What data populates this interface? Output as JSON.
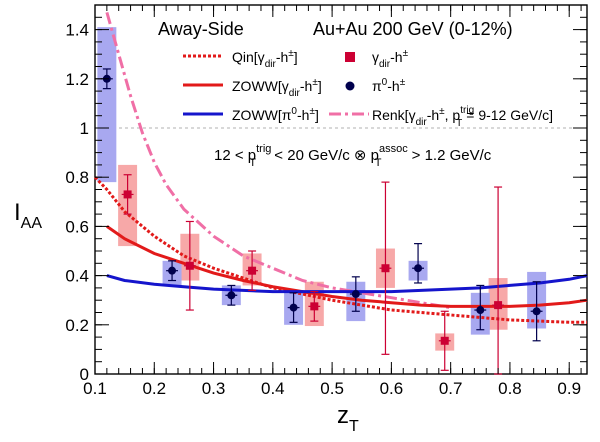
{
  "chart_data": {
    "type": "scatter",
    "title": "",
    "header_left": "Away-Side",
    "header_right": "Au+Au 200 GeV (0-12%)",
    "ylabel": {
      "main": "I",
      "sub": "AA"
    },
    "xlabel": {
      "main": "z",
      "sub": "T"
    },
    "xlim": [
      0.1,
      0.93
    ],
    "ylim": [
      0,
      1.5
    ],
    "x_ticks": [
      {
        "v": 0.1,
        "label": "0.1"
      },
      {
        "v": 0.2,
        "label": "0.2"
      },
      {
        "v": 0.3,
        "label": "0.3"
      },
      {
        "v": 0.4,
        "label": "0.4"
      },
      {
        "v": 0.5,
        "label": "0.5"
      },
      {
        "v": 0.6,
        "label": "0.6"
      },
      {
        "v": 0.7,
        "label": "0.7"
      },
      {
        "v": 0.8,
        "label": "0.8"
      },
      {
        "v": 0.9,
        "label": "0.9"
      }
    ],
    "y_ticks": [
      {
        "v": 0,
        "label": "0"
      },
      {
        "v": 0.2,
        "label": "0.2"
      },
      {
        "v": 0.4,
        "label": "0.4"
      },
      {
        "v": 0.6,
        "label": "0.6"
      },
      {
        "v": 0.8,
        "label": "0.8"
      },
      {
        "v": 1.0,
        "label": "1"
      },
      {
        "v": 1.2,
        "label": "1.2"
      },
      {
        "v": 1.4,
        "label": "1.4"
      }
    ],
    "reference_line": 1.0,
    "cut_label": {
      "pre": "12 < p",
      "t1sub": "T",
      "t1sup": "trig",
      "mid": " < 20 GeV/c ⊗ p",
      "t2sub": "T",
      "t2sup": "assoc",
      "post": " > 1.2 GeV/c"
    },
    "legend": [
      {
        "key": "qin",
        "pre": "Qin[γ",
        "sub": "dir",
        "post": "-h",
        "sup": "±",
        "end": "]"
      },
      {
        "key": "zoww_gamma",
        "pre": "ZOWW[γ",
        "sub": "dir",
        "post": "-h",
        "sup": "±",
        "end": "]"
      },
      {
        "key": "zoww_pi",
        "pre": "ZOWW[π",
        "sub": "",
        "post": "-h",
        "sup0": "0",
        "sup": "±",
        "end": "]"
      },
      {
        "key": "gamma_pts",
        "pre": "γ",
        "sub": "dir",
        "post": "-h",
        "sup": "±",
        "end": ""
      },
      {
        "key": "pi_pts",
        "pre": "π",
        "sup0": "0",
        "post": "-h",
        "sup": "±",
        "end": ""
      },
      {
        "key": "renk",
        "pre": "Renk[γ",
        "sub": "dir",
        "post": "-h",
        "sup": "±",
        "end": ", p",
        "sub2": "T",
        "sup2": "trig",
        "end2": "= 9-12 GeV/c]"
      }
    ],
    "colors": {
      "gamma": "#cc0033",
      "gamma_box": "#f7a8a8",
      "pi": "#00004d",
      "pi_box": "#a8a8f0",
      "qin": "#e21a1a",
      "zoww_gamma": "#e21a1a",
      "zoww_pi": "#1515cc",
      "renk": "#f06fa6",
      "refline": "#b0b0b0"
    },
    "series": [
      {
        "key": "gamma_pts",
        "points": [
          {
            "x": 0.155,
            "y": 0.73,
            "xerr": 0.01,
            "stat_lo": 0.08,
            "stat_hi": 0.08,
            "sys_lo": 0.21,
            "sys_hi": 0.12
          },
          {
            "x": 0.26,
            "y": 0.44,
            "xerr": 0.01,
            "stat_lo": 0.18,
            "stat_hi": 0.18,
            "sys_lo": 0.06,
            "sys_hi": 0.13
          },
          {
            "x": 0.365,
            "y": 0.42,
            "xerr": 0.01,
            "stat_lo": 0.08,
            "stat_hi": 0.08,
            "sys_lo": 0.06,
            "sys_hi": 0.07
          },
          {
            "x": 0.47,
            "y": 0.275,
            "xerr": 0.01,
            "stat_lo": 0.06,
            "stat_hi": 0.06,
            "sys_lo": 0.08,
            "sys_hi": 0.1
          },
          {
            "x": 0.59,
            "y": 0.43,
            "xerr": 0.01,
            "stat_lo": 0.35,
            "stat_hi": 0.35,
            "sys_lo": 0.08,
            "sys_hi": 0.08
          },
          {
            "x": 0.69,
            "y": 0.135,
            "xerr": 0.01,
            "stat_lo": 0.12,
            "stat_hi": 0.12,
            "sys_lo": 0.04,
            "sys_hi": 0.03
          },
          {
            "x": 0.78,
            "y": 0.28,
            "xerr": 0.01,
            "stat_lo": 0.28,
            "stat_hi": 0.48,
            "sys_lo": 0.1,
            "sys_hi": 0.11
          }
        ]
      },
      {
        "key": "pi_pts",
        "points": [
          {
            "x": 0.12,
            "y": 1.2,
            "xerr": 0.01,
            "stat_lo": 0.04,
            "stat_hi": 0.04,
            "sys_lo": 0.42,
            "sys_hi": 0.21
          },
          {
            "x": 0.23,
            "y": 0.42,
            "xerr": 0.01,
            "stat_lo": 0.04,
            "stat_hi": 0.04,
            "sys_lo": 0.06,
            "sys_hi": 0.04
          },
          {
            "x": 0.33,
            "y": 0.32,
            "xerr": 0.01,
            "stat_lo": 0.04,
            "stat_hi": 0.04,
            "sys_lo": 0.04,
            "sys_hi": 0.04
          },
          {
            "x": 0.435,
            "y": 0.27,
            "xerr": 0.01,
            "stat_lo": 0.06,
            "stat_hi": 0.06,
            "sys_lo": 0.07,
            "sys_hi": 0.07
          },
          {
            "x": 0.54,
            "y": 0.325,
            "xerr": 0.01,
            "stat_lo": 0.07,
            "stat_hi": 0.07,
            "sys_lo": 0.11,
            "sys_hi": 0.05
          },
          {
            "x": 0.645,
            "y": 0.43,
            "xerr": 0.01,
            "stat_lo": 0.06,
            "stat_hi": 0.1,
            "sys_lo": 0.05,
            "sys_hi": 0.03
          },
          {
            "x": 0.75,
            "y": 0.26,
            "xerr": 0.01,
            "stat_lo": 0.08,
            "stat_hi": 0.1,
            "sys_lo": 0.1,
            "sys_hi": 0.07
          },
          {
            "x": 0.845,
            "y": 0.255,
            "xerr": 0.01,
            "stat_lo": 0.12,
            "stat_hi": 0.12,
            "sys_lo": 0.07,
            "sys_hi": 0.16
          }
        ]
      }
    ],
    "curves": [
      {
        "key": "renk",
        "style": "dashdot",
        "x": [
          0.12,
          0.14,
          0.16,
          0.18,
          0.2,
          0.22,
          0.25,
          0.3,
          0.35,
          0.4,
          0.45,
          0.5,
          0.55,
          0.6,
          0.65,
          0.7
        ],
        "y": [
          1.47,
          1.3,
          1.13,
          0.98,
          0.86,
          0.77,
          0.67,
          0.56,
          0.48,
          0.43,
          0.38,
          0.35,
          0.33,
          0.31,
          0.29,
          0.27
        ]
      },
      {
        "key": "qin",
        "style": "dotted",
        "x": [
          0.1,
          0.12,
          0.15,
          0.2,
          0.25,
          0.3,
          0.4,
          0.5,
          0.6,
          0.7,
          0.8,
          0.9,
          0.93
        ],
        "y": [
          0.8,
          0.75,
          0.66,
          0.56,
          0.48,
          0.43,
          0.35,
          0.3,
          0.26,
          0.24,
          0.22,
          0.21,
          0.21
        ]
      },
      {
        "key": "zoww_gamma",
        "style": "solid",
        "x": [
          0.12,
          0.15,
          0.2,
          0.25,
          0.3,
          0.35,
          0.4,
          0.45,
          0.5,
          0.55,
          0.6,
          0.65,
          0.7,
          0.75,
          0.8,
          0.85,
          0.9,
          0.93
        ],
        "y": [
          0.6,
          0.55,
          0.49,
          0.45,
          0.41,
          0.38,
          0.355,
          0.335,
          0.315,
          0.3,
          0.29,
          0.28,
          0.275,
          0.275,
          0.275,
          0.28,
          0.29,
          0.3
        ]
      },
      {
        "key": "zoww_pi",
        "style": "solid",
        "x": [
          0.12,
          0.15,
          0.2,
          0.25,
          0.3,
          0.35,
          0.4,
          0.45,
          0.5,
          0.55,
          0.6,
          0.65,
          0.7,
          0.75,
          0.8,
          0.85,
          0.9,
          0.93
        ],
        "y": [
          0.4,
          0.38,
          0.365,
          0.355,
          0.345,
          0.34,
          0.335,
          0.335,
          0.335,
          0.335,
          0.335,
          0.34,
          0.345,
          0.35,
          0.36,
          0.37,
          0.385,
          0.4
        ]
      }
    ]
  }
}
